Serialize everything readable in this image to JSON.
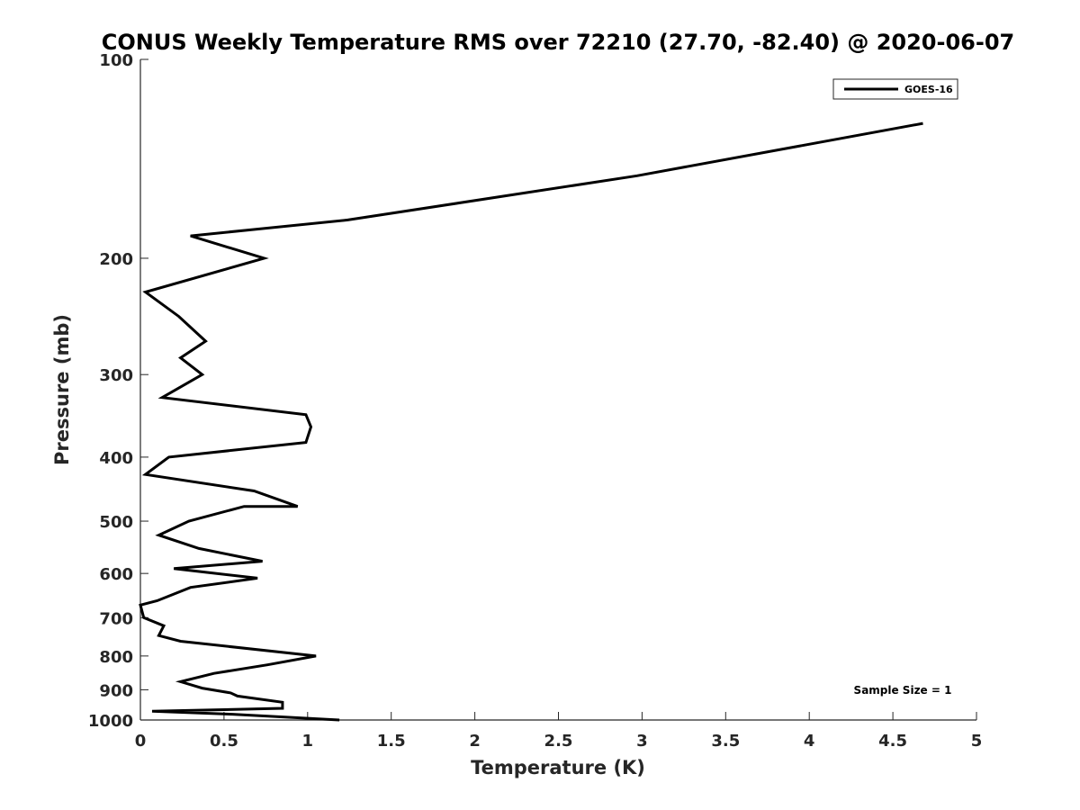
{
  "chart_data": {
    "type": "line",
    "title": "CONUS Weekly Temperature RMS over 72210 (27.70, -82.40) @ 2020-06-07",
    "xlabel": "Temperature (K)",
    "ylabel": "Pressure (mb)",
    "xlim": [
      0,
      5
    ],
    "ylim": [
      100,
      1000
    ],
    "y_scale": "log",
    "y_reversed": true,
    "x_ticks": [
      "0",
      "0.5",
      "1",
      "1.5",
      "2",
      "2.5",
      "3",
      "3.5",
      "4",
      "4.5",
      "5"
    ],
    "y_ticks": [
      "100",
      "200",
      "300",
      "400",
      "500",
      "600",
      "700",
      "800",
      "900",
      "1000"
    ],
    "grid": false,
    "legend_position": "top-right",
    "series": [
      {
        "name": "GOES-16",
        "color": "#000000",
        "x": [
          4.68,
          2.97,
          1.24,
          0.3,
          0.74,
          0.03,
          0.23,
          0.39,
          0.24,
          0.37,
          0.13,
          0.99,
          1.02,
          0.99,
          0.17,
          0.03,
          0.68,
          0.94,
          0.62,
          0.29,
          0.11,
          0.35,
          0.73,
          0.2,
          0.7,
          0.3,
          0.1,
          0.0,
          0.02,
          0.14,
          0.11,
          0.24,
          1.05,
          0.76,
          0.44,
          0.24,
          0.37,
          0.54,
          0.58,
          0.85,
          0.85,
          0.07,
          0.55,
          1.19
        ],
        "y": [
          125,
          150,
          175,
          185,
          200,
          225,
          245,
          267,
          283,
          300,
          325,
          345,
          360,
          380,
          400,
          425,
          450,
          475,
          475,
          500,
          525,
          550,
          575,
          590,
          610,
          630,
          660,
          670,
          700,
          720,
          745,
          760,
          800,
          825,
          850,
          875,
          895,
          910,
          920,
          940,
          960,
          970,
          980,
          1000
        ]
      }
    ],
    "annotations": [
      "Sample Size = 1"
    ]
  }
}
